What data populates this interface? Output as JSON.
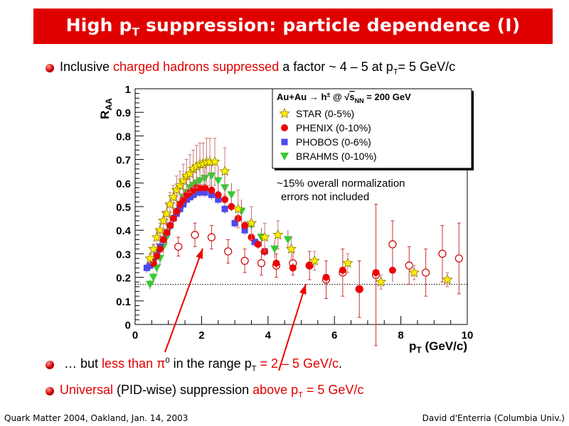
{
  "slide": {
    "title_pre": "High p",
    "title_sub": "T",
    "title_post": " suppression: particle dependence (I)",
    "bullets": [
      {
        "parts": [
          {
            "text": "Inclusive ",
            "style": "normal"
          },
          {
            "text": "charged hadrons suppressed",
            "style": "red"
          },
          {
            "text": " a factor ~ 4 – 5 at p",
            "style": "normal"
          },
          {
            "text": "T",
            "style": "sub"
          },
          {
            "text": "= 5 GeV/c",
            "style": "normal"
          }
        ]
      },
      {
        "parts": [
          {
            "text": "… but ",
            "style": "normal"
          },
          {
            "text": "less than π",
            "style": "red"
          },
          {
            "text": "0",
            "style": "sup"
          },
          {
            "text": " in the range p",
            "style": "normal"
          },
          {
            "text": "T",
            "style": "sub"
          },
          {
            "text": " = 2 – 5 GeV/c",
            "style": "red"
          },
          {
            "text": ".",
            "style": "normal"
          }
        ]
      },
      {
        "parts": [
          {
            "text": "Universal",
            "style": "red"
          },
          {
            "text": " (PID-wise) suppression ",
            "style": "normal"
          },
          {
            "text": "above p",
            "style": "red"
          },
          {
            "text": "T",
            "style": "redsub"
          },
          {
            "text": " = 5 GeV/c",
            "style": "red"
          }
        ]
      }
    ],
    "footer_left": "Quark Matter 2004, Oakland, Jan. 14, 2003",
    "footer_right": "David d'Enterria (Columbia Univ.)",
    "colors": {
      "title_bg": "#e10000",
      "accent": "#e10000"
    }
  },
  "chart_data": {
    "type": "scatter",
    "ylabel_main": "R",
    "ylabel_sub": "AA",
    "xlabel_main": "p",
    "xlabel_sub": "T",
    "xlabel_unit": " (GeV/c)",
    "xlim": [
      0,
      10
    ],
    "ylim": [
      0,
      1
    ],
    "xticks": [
      0,
      2,
      4,
      6,
      8,
      10
    ],
    "yticks": [
      0,
      0.1,
      0.2,
      0.3,
      0.4,
      0.5,
      0.6,
      0.7,
      0.8,
      0.9,
      1
    ],
    "xtick_labels": [
      "0",
      "2",
      "4",
      "6",
      "8",
      "10"
    ],
    "ytick_labels": [
      "0",
      "0.1",
      "0.2",
      "0.3",
      "0.4",
      "0.5",
      "0.6",
      "0.7",
      "0.8",
      "0.9",
      "1"
    ],
    "reference_line_y": 0.17,
    "legend": {
      "header": "Au+Au → h± @ √sNN = 200 GeV",
      "header_parts": [
        "Au+Au → h",
        "±",
        " @ √",
        "s",
        "NN",
        " = 200 GeV"
      ],
      "entries": [
        "STAR (0-5%)",
        "PHENIX (0-10%)",
        "PHOBOS (0-6%)",
        "BRAHMS (0-10%)"
      ],
      "placement": "top-right"
    },
    "annotation": [
      "~15% overall normalization",
      "errors not included"
    ],
    "series": [
      {
        "name": "STAR (0-5%)",
        "marker": "star",
        "color": "#ffee00",
        "x": [
          0.45,
          0.55,
          0.65,
          0.75,
          0.85,
          0.95,
          1.05,
          1.15,
          1.25,
          1.35,
          1.45,
          1.55,
          1.65,
          1.75,
          1.85,
          1.95,
          2.05,
          2.15,
          2.25,
          2.4,
          2.7,
          3.1,
          3.5,
          3.9,
          4.3,
          4.7,
          5.4,
          6.4,
          7.4,
          8.4,
          9.4
        ],
        "y": [
          0.28,
          0.32,
          0.37,
          0.4,
          0.44,
          0.47,
          0.51,
          0.54,
          0.57,
          0.59,
          0.61,
          0.63,
          0.64,
          0.66,
          0.67,
          0.68,
          0.68,
          0.69,
          0.69,
          0.69,
          0.65,
          0.49,
          0.43,
          0.37,
          0.38,
          0.32,
          0.27,
          0.26,
          0.18,
          0.22,
          0.19
        ],
        "err": [
          0.02,
          0.02,
          0.03,
          0.03,
          0.04,
          0.04,
          0.05,
          0.05,
          0.06,
          0.06,
          0.07,
          0.07,
          0.08,
          0.08,
          0.09,
          0.09,
          0.09,
          0.1,
          0.1,
          0.1,
          0.1,
          0.08,
          0.07,
          0.06,
          0.06,
          0.05,
          0.04,
          0.04,
          0.03,
          0.03,
          0.03
        ]
      },
      {
        "name": "PHENIX (0-10%)",
        "marker": "circle",
        "color": "#ee0000",
        "x": [
          0.55,
          0.65,
          0.75,
          0.85,
          0.95,
          1.05,
          1.15,
          1.25,
          1.35,
          1.45,
          1.55,
          1.65,
          1.75,
          1.85,
          1.95,
          2.1,
          2.3,
          2.5,
          2.7,
          2.9,
          3.1,
          3.3,
          3.5,
          3.7,
          3.9,
          4.25,
          4.75,
          5.25,
          5.75,
          6.25,
          6.75,
          7.25,
          7.75
        ],
        "y": [
          0.26,
          0.29,
          0.32,
          0.36,
          0.39,
          0.42,
          0.45,
          0.48,
          0.51,
          0.53,
          0.55,
          0.56,
          0.57,
          0.58,
          0.58,
          0.58,
          0.57,
          0.55,
          0.53,
          0.5,
          0.45,
          0.42,
          0.37,
          0.34,
          0.31,
          0.26,
          0.24,
          0.25,
          0.2,
          0.23,
          0.15,
          0.22,
          0.23
        ],
        "err": [
          0.02,
          0.02,
          0.02,
          0.02,
          0.02,
          0.02,
          0.02,
          0.02,
          0.02,
          0.02,
          0.02,
          0.02,
          0.02,
          0.02,
          0.02,
          0.02,
          0.02,
          0.02,
          0.02,
          0.02,
          0.02,
          0.02,
          0.02,
          0.02,
          0.02,
          0.02,
          0.02,
          0.02,
          0.03,
          0.03,
          0.03,
          0.04,
          0.05
        ]
      },
      {
        "name": "PHOBOS (0-6%)",
        "marker": "square",
        "color": "#4a4af0",
        "x": [
          0.35,
          0.45,
          0.55,
          0.65,
          0.75,
          0.85,
          0.95,
          1.05,
          1.15,
          1.25,
          1.35,
          1.45,
          1.55,
          1.65,
          1.75,
          1.85,
          1.95,
          2.1,
          2.3,
          2.5,
          2.7,
          3.0,
          3.3,
          3.6,
          3.9
        ],
        "y": [
          0.24,
          0.25,
          0.27,
          0.3,
          0.33,
          0.36,
          0.39,
          0.42,
          0.45,
          0.47,
          0.49,
          0.51,
          0.53,
          0.54,
          0.55,
          0.56,
          0.56,
          0.56,
          0.55,
          0.53,
          0.49,
          0.43,
          0.4,
          0.35,
          0.31
        ],
        "err": [
          0.02,
          0.02,
          0.02,
          0.02,
          0.02,
          0.02,
          0.02,
          0.02,
          0.02,
          0.02,
          0.02,
          0.02,
          0.02,
          0.02,
          0.02,
          0.02,
          0.02,
          0.02,
          0.02,
          0.02,
          0.02,
          0.02,
          0.02,
          0.02,
          0.02
        ]
      },
      {
        "name": "BRAHMS (0-10%)",
        "marker": "triangle",
        "color": "#33cc33",
        "x": [
          0.45,
          0.55,
          0.65,
          0.75,
          0.85,
          0.95,
          1.05,
          1.15,
          1.25,
          1.35,
          1.45,
          1.55,
          1.65,
          1.75,
          1.85,
          1.95,
          2.1,
          2.3,
          2.5,
          2.7,
          2.9,
          3.2,
          3.5,
          3.8,
          4.2,
          4.6
        ],
        "y": [
          0.17,
          0.2,
          0.24,
          0.28,
          0.33,
          0.37,
          0.41,
          0.45,
          0.48,
          0.51,
          0.54,
          0.56,
          0.58,
          0.59,
          0.6,
          0.61,
          0.62,
          0.63,
          0.61,
          0.58,
          0.55,
          0.48,
          0.42,
          0.37,
          0.32,
          0.36
        ],
        "err": [
          0.02,
          0.02,
          0.02,
          0.03,
          0.03,
          0.03,
          0.03,
          0.04,
          0.04,
          0.04,
          0.05,
          0.05,
          0.05,
          0.06,
          0.06,
          0.06,
          0.06,
          0.06,
          0.06,
          0.06,
          0.05,
          0.05,
          0.05,
          0.04,
          0.04,
          0.04
        ]
      },
      {
        "marker": "open-circle",
        "color": "#cc0000",
        "x": [
          1.3,
          1.8,
          2.3,
          2.8,
          3.3,
          3.8,
          4.25,
          4.75,
          5.25,
          5.75,
          6.25,
          6.75,
          7.25,
          7.75,
          8.25,
          8.75,
          9.25,
          9.75
        ],
        "y": [
          0.33,
          0.38,
          0.37,
          0.31,
          0.27,
          0.26,
          0.25,
          0.26,
          0.25,
          0.19,
          0.22,
          0.15,
          0.21,
          0.34,
          0.25,
          0.22,
          0.3,
          0.28
        ],
        "err": [
          0.04,
          0.05,
          0.05,
          0.05,
          0.05,
          0.05,
          0.05,
          0.05,
          0.06,
          0.08,
          0.1,
          0.12,
          0.3,
          0.1,
          0.08,
          0.1,
          0.12,
          0.15
        ]
      }
    ]
  }
}
